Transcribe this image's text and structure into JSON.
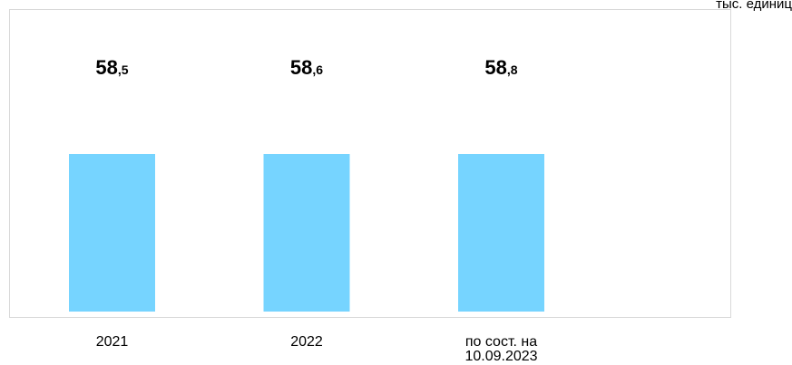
{
  "unit_label": "тыс. единиц",
  "colors": {
    "bar": "#76D4FF",
    "frame": "#d9d9d9",
    "text": "#000000"
  },
  "chart_data": {
    "type": "bar",
    "categories": [
      "2021",
      "2022",
      "по сост. на 10.09.2023"
    ],
    "values": [
      58.5,
      58.6,
      58.8
    ],
    "value_labels": [
      {
        "integer": "58",
        "sep": ",",
        "fraction": "5"
      },
      {
        "integer": "58",
        "sep": ",",
        "fraction": "6"
      },
      {
        "integer": "58",
        "sep": ",",
        "fraction": "8"
      }
    ],
    "title": "",
    "xlabel": "",
    "ylabel": "",
    "grid": false,
    "legend": "none"
  }
}
